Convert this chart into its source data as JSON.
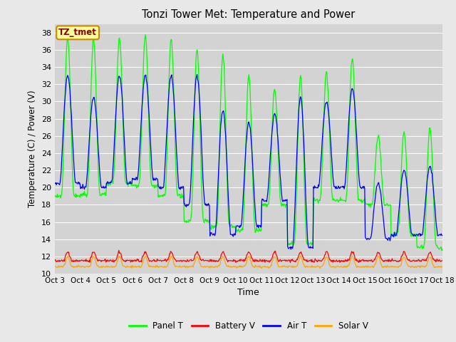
{
  "title": "Tonzi Tower Met: Temperature and Power",
  "xlabel": "Time",
  "ylabel": "Temperature (C) / Power (V)",
  "ylim": [
    10,
    39
  ],
  "yticks": [
    10,
    12,
    14,
    16,
    18,
    20,
    22,
    24,
    26,
    28,
    30,
    32,
    34,
    36,
    38
  ],
  "xtick_labels": [
    "Oct 3",
    "Oct 4",
    "Oct 5",
    "Oct 6",
    "Oct 7",
    "Oct 8",
    "Oct 9",
    "Oct 10",
    "Oct 11",
    "Oct 12",
    "Oct 13",
    "Oct 14",
    "Oct 15",
    "Oct 16",
    "Oct 17",
    "Oct 18"
  ],
  "n_days": 15,
  "panel_color": "#00FF00",
  "battery_color": "#FF0000",
  "air_color": "#0000FF",
  "solar_color": "#FFA500",
  "fig_bg_color": "#E8E8E8",
  "plot_bg_color": "#D3D3D3",
  "grid_color": "#FFFFFF",
  "annotation_text": "TZ_tmet",
  "annotation_fg": "#8B0000",
  "annotation_bg": "#FFFF99",
  "annotation_border": "#CC8800",
  "legend_items": [
    "Panel T",
    "Battery V",
    "Air T",
    "Solar V"
  ],
  "legend_colors": [
    "#00FF00",
    "#FF0000",
    "#0000FF",
    "#FFA500"
  ],
  "points_per_day": 48,
  "panel_day_peaks": [
    37.5,
    37.2,
    37.4,
    37.8,
    37.3,
    36.0,
    35.5,
    33.0,
    31.5,
    33.0,
    33.5,
    35.0,
    26.0,
    26.5,
    27.0
  ],
  "panel_night_mins": [
    19.0,
    19.2,
    20.5,
    20.2,
    19.0,
    16.0,
    15.5,
    15.0,
    18.0,
    13.5,
    18.5,
    18.5,
    18.0,
    14.5,
    13.0
  ],
  "air_day_peaks": [
    33.0,
    30.5,
    33.0,
    33.0,
    33.0,
    33.0,
    29.0,
    27.5,
    28.5,
    30.5,
    30.0,
    31.5,
    20.5,
    22.0,
    22.5
  ],
  "air_night_mins": [
    20.5,
    20.0,
    20.5,
    21.0,
    20.0,
    18.0,
    14.5,
    15.5,
    18.5,
    13.0,
    20.0,
    20.0,
    14.0,
    14.5,
    14.5
  ],
  "battery_base": 11.5,
  "battery_amp": 1.0,
  "solar_base": 10.8,
  "solar_amp": 1.2
}
